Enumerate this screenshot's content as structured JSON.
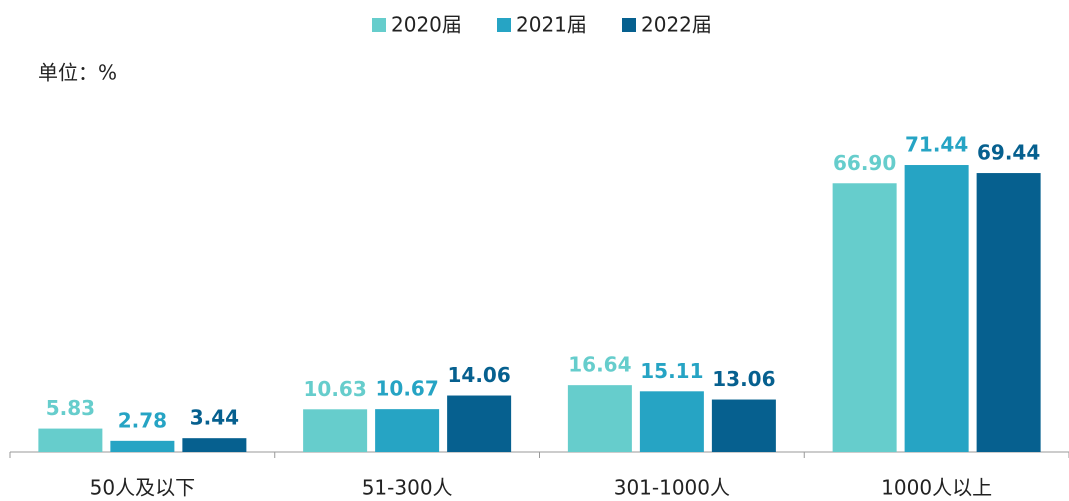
{
  "chart_data": {
    "type": "bar",
    "unit_label": "单位：%",
    "categories": [
      "50人及以下",
      "51-300人",
      "301-1000人",
      "1000人以上"
    ],
    "series": [
      {
        "name": "2020届",
        "color": "#66cdcc",
        "values": [
          5.83,
          10.63,
          16.64,
          66.9
        ],
        "value_labels": [
          "5.83",
          "10.63",
          "16.64",
          "66.90"
        ]
      },
      {
        "name": "2021届",
        "color": "#26a4c4",
        "values": [
          2.78,
          10.67,
          15.11,
          71.44
        ],
        "value_labels": [
          "2.78",
          "10.67",
          "15.11",
          "71.44"
        ]
      },
      {
        "name": "2022届",
        "color": "#06608f",
        "values": [
          3.44,
          14.06,
          13.06,
          69.44
        ],
        "value_labels": [
          "3.44",
          "14.06",
          "13.06",
          "69.44"
        ]
      }
    ],
    "ylim": [
      0,
      100
    ],
    "legend": "top"
  }
}
